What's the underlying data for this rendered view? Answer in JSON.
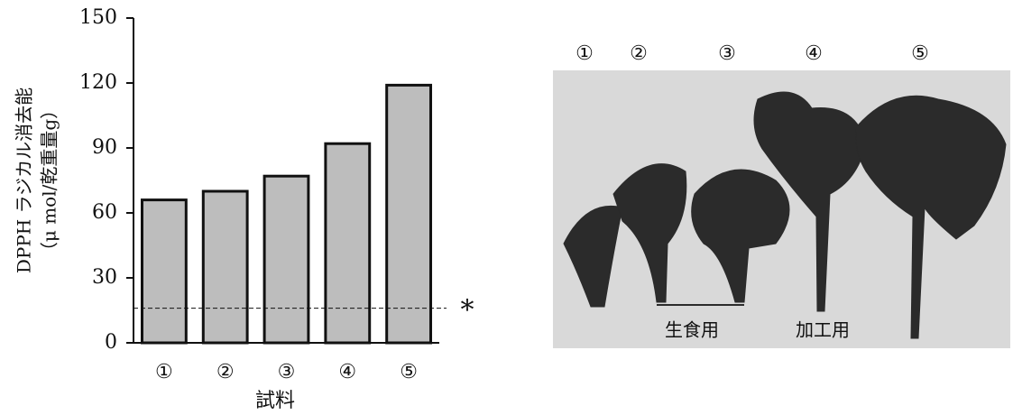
{
  "chart_data": {
    "type": "bar",
    "categories": [
      "①",
      "②",
      "③",
      "④",
      "⑤"
    ],
    "values": [
      66,
      70,
      77,
      92,
      119
    ],
    "color": "#bdbdbd",
    "ylim": [
      0,
      150
    ],
    "yticks": [
      0,
      30,
      60,
      90,
      120,
      150
    ],
    "y_label": [
      "DPPH ラジカル消去能",
      "（μ mol/乾重量g）"
    ],
    "x_label": "試料",
    "reference_line": {
      "value": 16,
      "label": "*"
    }
  },
  "photo": {
    "labels": [
      "①",
      "②",
      "③",
      "④",
      "⑤"
    ],
    "captions": [
      "生食用",
      "加工用"
    ]
  }
}
